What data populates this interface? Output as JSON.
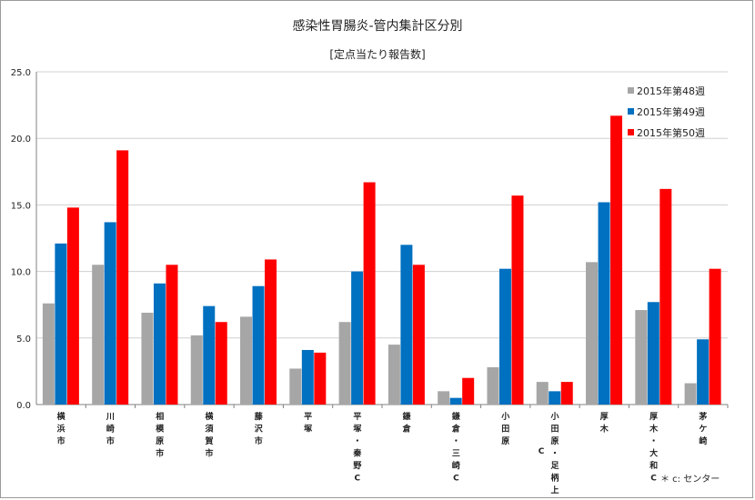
{
  "chart_data": {
    "type": "bar",
    "title": "感染性胃腸炎-管内集計区分別",
    "subtitle": "[定点当たり報告数]",
    "ylim": [
      0,
      25
    ],
    "yticks": [
      "0.0",
      "5.0",
      "10.0",
      "15.0",
      "20.0",
      "25.0"
    ],
    "ytick_values": [
      0,
      5,
      10,
      15,
      20,
      25
    ],
    "grid": true,
    "legend_position": "top-right",
    "categories": [
      [
        "横",
        "浜",
        "市"
      ],
      [
        "川",
        "崎",
        "市"
      ],
      [
        "相",
        "模",
        "原",
        "市"
      ],
      [
        "横",
        "須",
        "賀",
        "市"
      ],
      [
        "藤",
        "沢",
        "市"
      ],
      [
        "平",
        "塚"
      ],
      [
        "平",
        "塚",
        "・",
        "秦",
        "野",
        "C"
      ],
      [
        "鎌",
        "倉"
      ],
      [
        "鎌",
        "倉",
        "・",
        "三",
        "崎",
        "C"
      ],
      [
        "小",
        "田",
        "原"
      ],
      [
        "小",
        "田",
        "原",
        "・",
        "足",
        "柄",
        "上"
      ],
      [
        "厚",
        "木"
      ],
      [
        "厚",
        "木",
        "・",
        "大",
        "和",
        "C"
      ],
      [
        "茅",
        "ケ",
        "崎"
      ]
    ],
    "extra_c_label": "C",
    "series": [
      {
        "name": "2015年第48週",
        "color": "#a6a6a6",
        "values": [
          7.6,
          10.5,
          6.9,
          5.2,
          6.6,
          2.7,
          6.2,
          4.5,
          1.0,
          2.8,
          1.7,
          10.7,
          7.1,
          1.6
        ]
      },
      {
        "name": "2015年第49週",
        "color": "#0070c0",
        "values": [
          12.1,
          13.7,
          9.1,
          7.4,
          8.9,
          4.1,
          10.0,
          12.0,
          0.5,
          10.2,
          1.0,
          15.2,
          7.7,
          4.9
        ]
      },
      {
        "name": "2015年第50週",
        "color": "#ff0000",
        "values": [
          14.8,
          19.1,
          10.5,
          6.2,
          10.9,
          3.9,
          16.7,
          10.5,
          2.0,
          15.7,
          1.7,
          21.7,
          16.2,
          10.2
        ]
      }
    ],
    "note": "＊ c: センター"
  }
}
